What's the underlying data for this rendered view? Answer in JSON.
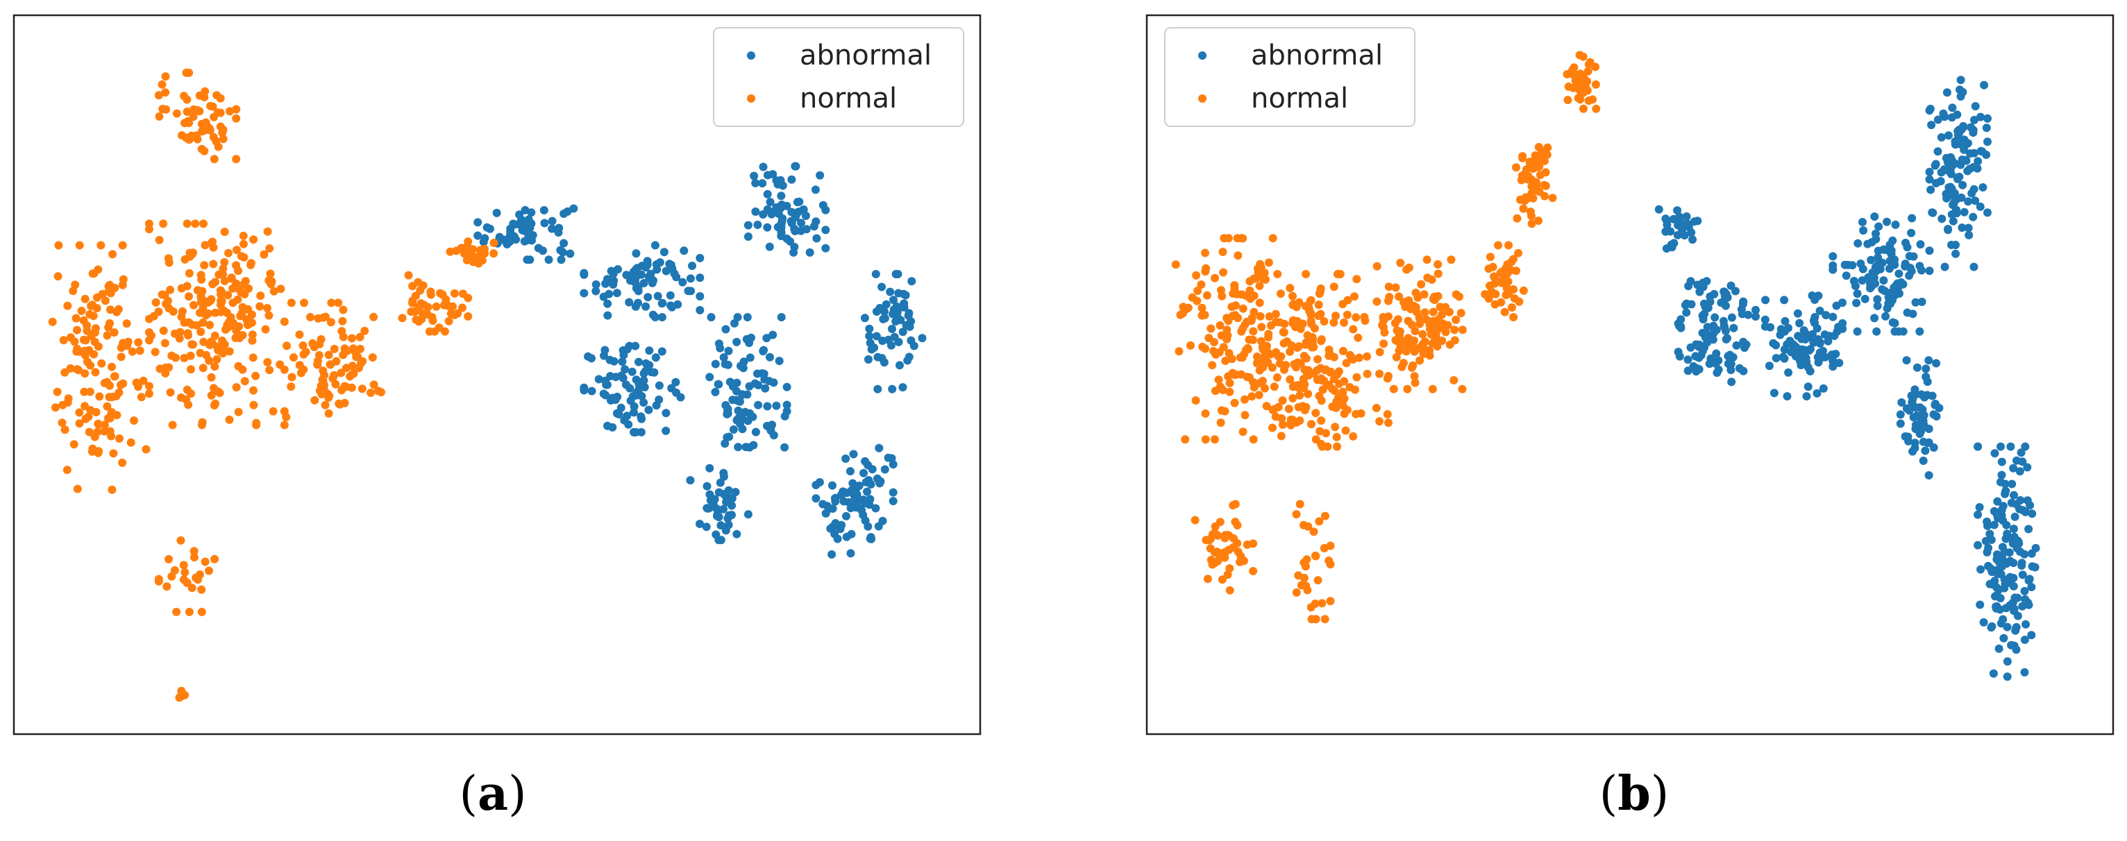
{
  "colors": {
    "abnormal": "#1f77b4",
    "normal": "#ff7f0e",
    "frame": "#222222",
    "legend_border": "#cccccc"
  },
  "panels": [
    {
      "caption_open": "(",
      "caption_letter": "a",
      "caption_close": ")"
    },
    {
      "caption_open": "(",
      "caption_letter": "b",
      "caption_close": ")"
    }
  ],
  "chart_data": [
    {
      "type": "scatter",
      "title": "",
      "xlabel": "",
      "ylabel": "",
      "axes_ticks": false,
      "grid": false,
      "legend_position": "top-right",
      "xlim": [
        0,
        100
      ],
      "ylim": [
        0,
        100
      ],
      "series": [
        {
          "name": "abnormal",
          "color": "#1f77b4",
          "clusters": [
            {
              "cx": 53.0,
              "cy": 70.0,
              "rx": 5.0,
              "ry": 4.0,
              "n": 60
            },
            {
              "cx": 65.0,
              "cy": 63.0,
              "rx": 6.0,
              "ry": 5.0,
              "n": 80
            },
            {
              "cx": 64.0,
              "cy": 48.0,
              "rx": 5.0,
              "ry": 6.0,
              "n": 80
            },
            {
              "cx": 76.0,
              "cy": 48.0,
              "rx": 4.0,
              "ry": 10.0,
              "n": 90
            },
            {
              "cx": 80.0,
              "cy": 73.0,
              "rx": 4.0,
              "ry": 6.0,
              "n": 70
            },
            {
              "cx": 91.0,
              "cy": 56.0,
              "rx": 3.0,
              "ry": 8.0,
              "n": 60
            },
            {
              "cx": 87.0,
              "cy": 33.0,
              "rx": 4.0,
              "ry": 8.0,
              "n": 80
            },
            {
              "cx": 73.0,
              "cy": 32.0,
              "rx": 3.0,
              "ry": 5.0,
              "n": 40
            }
          ]
        },
        {
          "name": "normal",
          "color": "#ff7f0e",
          "clusters": [
            {
              "cx": 19.0,
              "cy": 86.0,
              "rx": 4.0,
              "ry": 6.0,
              "n": 60
            },
            {
              "cx": 9.0,
              "cy": 51.0,
              "rx": 5.0,
              "ry": 17.0,
              "n": 140
            },
            {
              "cx": 21.0,
              "cy": 57.0,
              "rx": 7.0,
              "ry": 14.0,
              "n": 220
            },
            {
              "cx": 33.0,
              "cy": 52.0,
              "rx": 5.0,
              "ry": 8.0,
              "n": 90
            },
            {
              "cx": 43.0,
              "cy": 60.0,
              "rx": 4.0,
              "ry": 4.0,
              "n": 45
            },
            {
              "cx": 48.0,
              "cy": 67.0,
              "rx": 3.0,
              "ry": 2.0,
              "n": 25
            },
            {
              "cx": 18.0,
              "cy": 22.0,
              "rx": 3.0,
              "ry": 5.0,
              "n": 25
            },
            {
              "cx": 17.5,
              "cy": 5.5,
              "rx": 0.6,
              "ry": 0.8,
              "n": 4
            }
          ]
        }
      ]
    },
    {
      "type": "scatter",
      "title": "",
      "xlabel": "",
      "ylabel": "",
      "axes_ticks": false,
      "grid": false,
      "legend_position": "top-left",
      "xlim": [
        0,
        100
      ],
      "ylim": [
        0,
        100
      ],
      "series": [
        {
          "name": "abnormal",
          "color": "#1f77b4",
          "clusters": [
            {
              "cx": 55.0,
              "cy": 70.0,
              "rx": 2.0,
              "ry": 3.0,
              "n": 30
            },
            {
              "cx": 59.0,
              "cy": 56.0,
              "rx": 4.0,
              "ry": 7.0,
              "n": 100
            },
            {
              "cx": 68.0,
              "cy": 54.0,
              "rx": 4.0,
              "ry": 7.0,
              "n": 90
            },
            {
              "cx": 76.0,
              "cy": 64.0,
              "rx": 5.0,
              "ry": 8.0,
              "n": 110
            },
            {
              "cx": 84.0,
              "cy": 78.0,
              "rx": 3.0,
              "ry": 13.0,
              "n": 120
            },
            {
              "cx": 80.0,
              "cy": 44.0,
              "rx": 2.0,
              "ry": 8.0,
              "n": 60
            },
            {
              "cx": 89.0,
              "cy": 24.0,
              "rx": 3.0,
              "ry": 16.0,
              "n": 150
            }
          ]
        },
        {
          "name": "normal",
          "color": "#ff7f0e",
          "clusters": [
            {
              "cx": 10.0,
              "cy": 55.0,
              "rx": 7.0,
              "ry": 14.0,
              "n": 180
            },
            {
              "cx": 18.0,
              "cy": 52.0,
              "rx": 7.0,
              "ry": 12.0,
              "n": 180
            },
            {
              "cx": 28.0,
              "cy": 57.0,
              "rx": 5.0,
              "ry": 9.0,
              "n": 120
            },
            {
              "cx": 37.0,
              "cy": 63.0,
              "rx": 2.0,
              "ry": 5.0,
              "n": 45
            },
            {
              "cx": 40.0,
              "cy": 77.0,
              "rx": 2.0,
              "ry": 6.0,
              "n": 50
            },
            {
              "cx": 45.0,
              "cy": 91.0,
              "rx": 1.5,
              "ry": 4.0,
              "n": 40
            },
            {
              "cx": 8.0,
              "cy": 26.0,
              "rx": 3.0,
              "ry": 6.0,
              "n": 45
            },
            {
              "cx": 17.0,
              "cy": 24.0,
              "rx": 2.0,
              "ry": 8.0,
              "n": 30
            }
          ]
        }
      ]
    }
  ]
}
